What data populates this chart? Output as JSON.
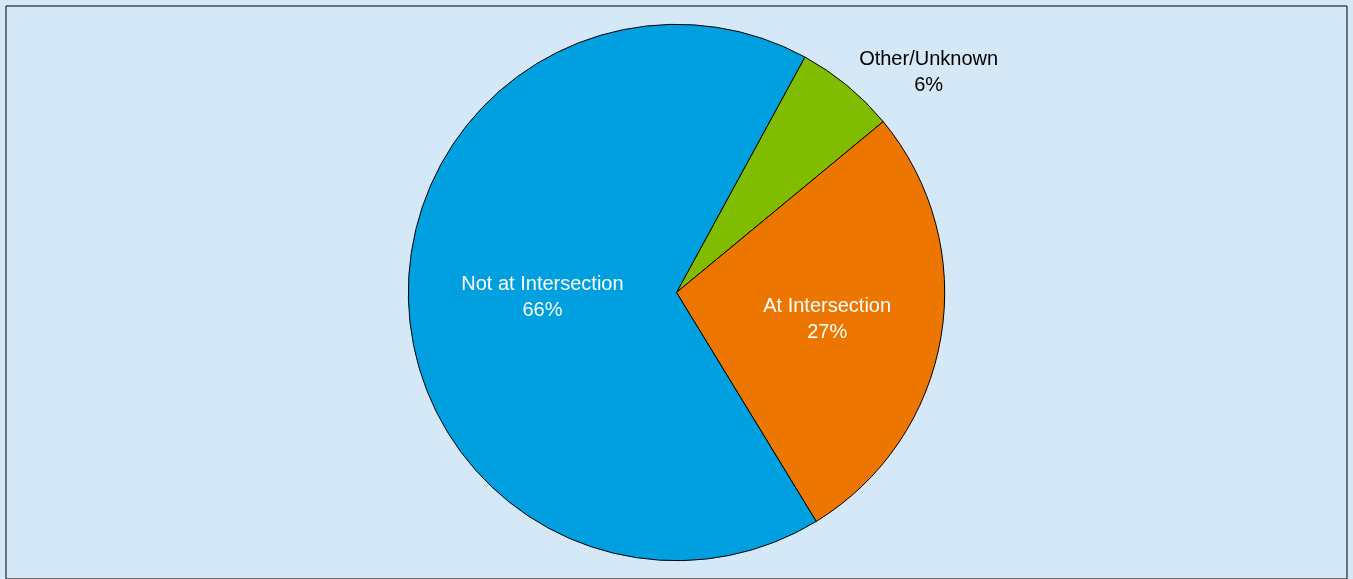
{
  "chart_data": {
    "type": "pie",
    "categories": [
      "Other/Unknown",
      "At Intersection",
      "Not at Intersection"
    ],
    "values": [
      6,
      27,
      66
    ],
    "value_labels": [
      "6%",
      "27%",
      "66%"
    ],
    "colors": [
      "#80bd00",
      "#ec7600",
      "#009fdf"
    ],
    "legend": false
  }
}
